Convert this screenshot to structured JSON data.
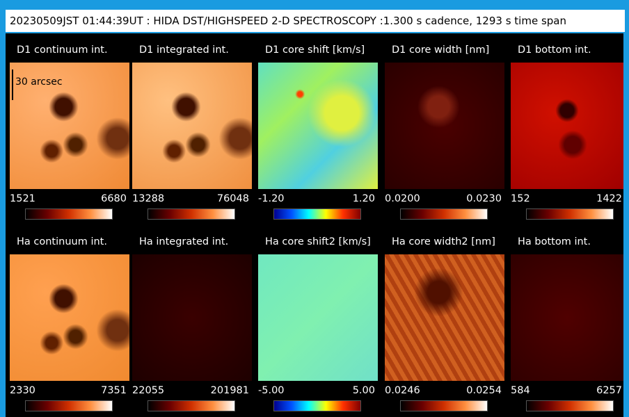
{
  "header": {
    "title": "20230509JST 01:44:39UT : HIDA DST/HIGHSPEED 2-D SPECTROSCOPY :1.300 s cadence, 1293 s time span"
  },
  "scale_label": "30 arcsec",
  "panels": [
    {
      "title": "D1 continuum int.",
      "min": "1521",
      "max": "6680"
    },
    {
      "title": "D1 integrated int.",
      "min": "13288",
      "max": "76048"
    },
    {
      "title": "D1 core shift [km/s]",
      "min": "-1.20",
      "max": "1.20"
    },
    {
      "title": "D1 core width [nm]",
      "min": "0.0200",
      "max": "0.0230"
    },
    {
      "title": "D1 bottom int.",
      "min": "152",
      "max": "1422"
    },
    {
      "title": "Ha continuum int.",
      "min": "2330",
      "max": "7351"
    },
    {
      "title": "Ha integrated int.",
      "min": "22055",
      "max": "201981"
    },
    {
      "title": "Ha core shift2 [km/s]",
      "min": "-5.00",
      "max": "5.00"
    },
    {
      "title": "Ha core width2 [nm]",
      "min": "0.0246",
      "max": "0.0254"
    },
    {
      "title": "Ha bottom int.",
      "min": "584",
      "max": "6257"
    }
  ]
}
